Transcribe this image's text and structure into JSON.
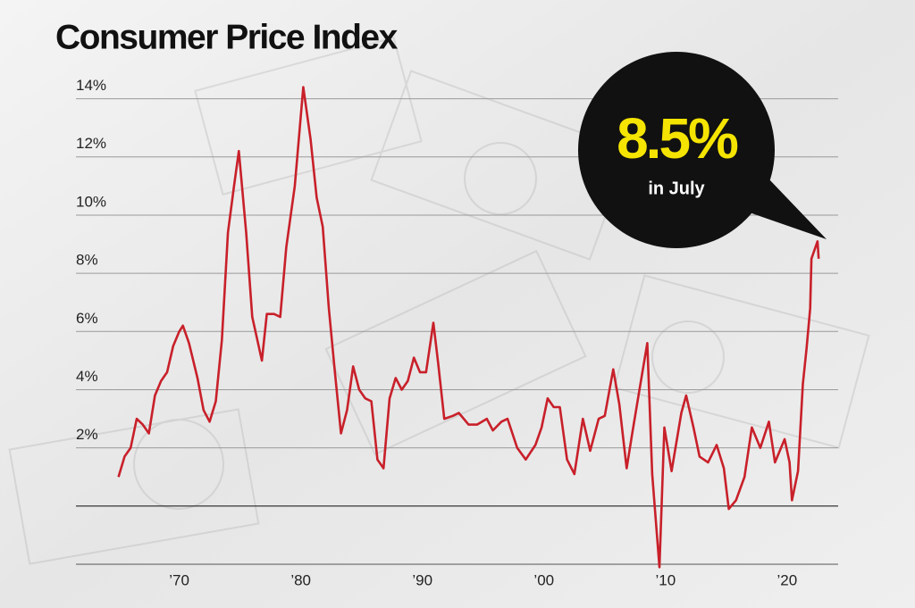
{
  "chart_data": {
    "type": "line",
    "title": "Consumer Price Index",
    "annotation": {
      "value_text": "8.5%",
      "sub_text": "in July"
    },
    "x": [
      1965.0,
      1965.5,
      1966.0,
      1966.5,
      1967.0,
      1967.5,
      1968.0,
      1968.5,
      1969.0,
      1969.5,
      1970.0,
      1970.3,
      1970.8,
      1971.5,
      1972.0,
      1972.5,
      1973.0,
      1973.5,
      1974.0,
      1974.5,
      1974.9,
      1975.5,
      1976.0,
      1976.8,
      1977.2,
      1977.8,
      1978.3,
      1978.8,
      1979.5,
      1980.2,
      1980.8,
      1981.3,
      1981.8,
      1982.3,
      1982.8,
      1983.3,
      1983.8,
      1984.3,
      1984.8,
      1985.3,
      1985.8,
      1986.3,
      1986.8,
      1987.3,
      1987.8,
      1988.3,
      1988.8,
      1989.3,
      1989.8,
      1990.3,
      1990.9,
      1991.3,
      1991.8,
      1992.5,
      1993.0,
      1993.8,
      1994.5,
      1995.3,
      1995.8,
      1996.5,
      1997.0,
      1997.8,
      1998.5,
      1999.3,
      1999.8,
      2000.3,
      2000.8,
      2001.3,
      2001.9,
      2002.5,
      2003.2,
      2003.8,
      2004.5,
      2005.0,
      2005.7,
      2006.2,
      2006.8,
      2007.3,
      2007.9,
      2008.5,
      2008.9,
      2009.5,
      2009.9,
      2010.5,
      2011.3,
      2011.7,
      2012.3,
      2012.8,
      2013.5,
      2014.2,
      2014.8,
      2015.2,
      2015.8,
      2016.5,
      2017.1,
      2017.8,
      2018.5,
      2019.0,
      2019.8,
      2020.2,
      2020.4,
      2020.9,
      2021.3,
      2021.6,
      2021.9,
      2022.0,
      2022.5,
      2022.6
    ],
    "series": [
      {
        "color": "#c8202a",
        "values": [
          1.0,
          1.7,
          2.0,
          3.0,
          2.8,
          2.5,
          3.8,
          4.3,
          4.6,
          5.5,
          6.0,
          6.2,
          5.6,
          4.4,
          3.3,
          2.9,
          3.6,
          5.7,
          9.4,
          11.0,
          12.2,
          9.4,
          6.5,
          5.0,
          6.6,
          6.6,
          6.5,
          8.9,
          11.0,
          14.4,
          12.6,
          10.6,
          9.6,
          6.8,
          4.6,
          2.5,
          3.3,
          4.8,
          4.0,
          3.7,
          3.6,
          1.6,
          1.3,
          3.7,
          4.4,
          4.0,
          4.3,
          5.1,
          4.6,
          4.6,
          6.3,
          4.9,
          3.0,
          3.1,
          3.2,
          2.8,
          2.8,
          3.0,
          2.6,
          2.9,
          3.0,
          2.0,
          1.6,
          2.1,
          2.7,
          3.7,
          3.4,
          3.4,
          1.6,
          1.1,
          3.0,
          1.9,
          3.0,
          3.1,
          4.7,
          3.5,
          1.3,
          2.6,
          4.1,
          5.6,
          1.1,
          -2.1,
          2.7,
          1.2,
          3.2,
          3.8,
          2.7,
          1.7,
          1.5,
          2.1,
          1.3,
          -0.1,
          0.2,
          1.0,
          2.7,
          2.0,
          2.9,
          1.5,
          2.3,
          1.5,
          0.2,
          1.2,
          4.2,
          5.4,
          6.8,
          8.5,
          9.1,
          8.5
        ]
      }
    ],
    "xlim": [
      1961.5,
      2024.2
    ],
    "xticks": [
      {
        "value": 1970,
        "label": "’70"
      },
      {
        "value": 1980,
        "label": "’80"
      },
      {
        "value": 1990,
        "label": "’90"
      },
      {
        "value": 2000,
        "label": "’00"
      },
      {
        "value": 2010,
        "label": "’10"
      },
      {
        "value": 2020,
        "label": "’20"
      }
    ],
    "ylim": [
      -2,
      15
    ],
    "yticks": [
      {
        "value": 2,
        "label": "2%"
      },
      {
        "value": 4,
        "label": "4%"
      },
      {
        "value": 6,
        "label": "6%"
      },
      {
        "value": 8,
        "label": "8%"
      },
      {
        "value": 10,
        "label": "10%"
      },
      {
        "value": 12,
        "label": "12%"
      },
      {
        "value": 14,
        "label": "14%"
      }
    ],
    "grid": true,
    "zero_line": true
  }
}
